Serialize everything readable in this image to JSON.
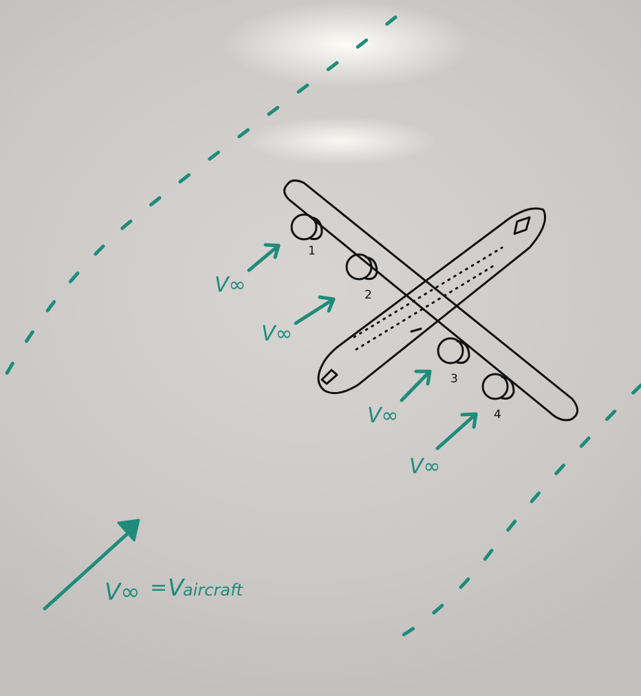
{
  "engine_labels": [
    "1",
    "2",
    "3",
    "4"
  ],
  "freestream_labels": [
    "V∞",
    "V∞",
    "V∞",
    "V∞"
  ],
  "legend": {
    "symbol": "V∞",
    "equals": "=",
    "rhs": "V",
    "rhs_subscript": "aircraft"
  },
  "colors": {
    "ink": "#111111",
    "marker": "#1f8c7b",
    "board": "#d2cfcd"
  }
}
